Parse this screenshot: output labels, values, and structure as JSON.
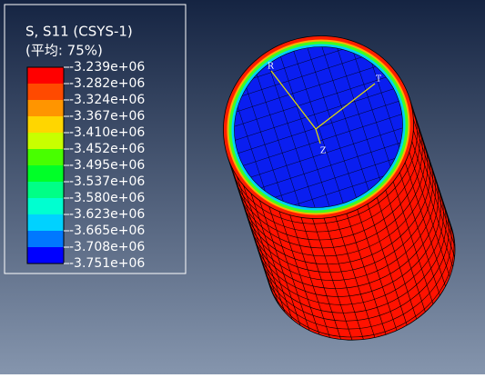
{
  "legend": {
    "title": "S, S11 (CSYS-1)",
    "subtitle": "(平均: 75%)",
    "labels": [
      "-3.239e+06",
      "-3.282e+06",
      "-3.324e+06",
      "-3.367e+06",
      "-3.410e+06",
      "-3.452e+06",
      "-3.495e+06",
      "-3.537e+06",
      "-3.580e+06",
      "-3.623e+06",
      "-3.665e+06",
      "-3.708e+06",
      "-3.751e+06"
    ],
    "colors": [
      "#ff0000",
      "#ff4a00",
      "#ff9500",
      "#ffd600",
      "#c8ff00",
      "#48ff00",
      "#00ff28",
      "#00ff86",
      "#00ffd0",
      "#00d2ff",
      "#0078ff",
      "#0000ff"
    ]
  },
  "triad": {
    "r": "R",
    "t": "T",
    "z": "Z"
  }
}
